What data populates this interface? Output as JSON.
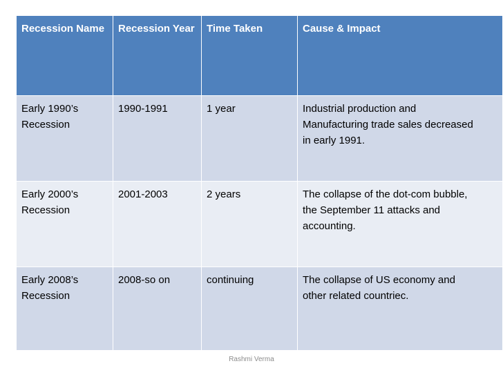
{
  "table": {
    "headers": [
      "Recession Name",
      "Recession Year",
      "Time Taken",
      "Cause & Impact"
    ],
    "rows": [
      {
        "name": "Early 1990’s Recession",
        "year": "1990-1991",
        "time": "1 year",
        "cause": "Industrial production and Manufacturing trade sales decreased in early 1991."
      },
      {
        "name": "Early 2000’s Recession",
        "year": "2001-2003",
        "time": "2 years",
        "cause": "The collapse of the dot-com bubble, the September 11 attacks and accounting."
      },
      {
        "name": "Early 2008’s Recession",
        "year": "2008-so on",
        "time": "continuing",
        "cause": "The collapse of US economy and other related countriec."
      }
    ]
  },
  "footer": {
    "author": "Rashmi Verma"
  },
  "colors": {
    "header_bg": "#4f81bd",
    "row_dark": "#d0d8e8",
    "row_light": "#e9edf4"
  }
}
